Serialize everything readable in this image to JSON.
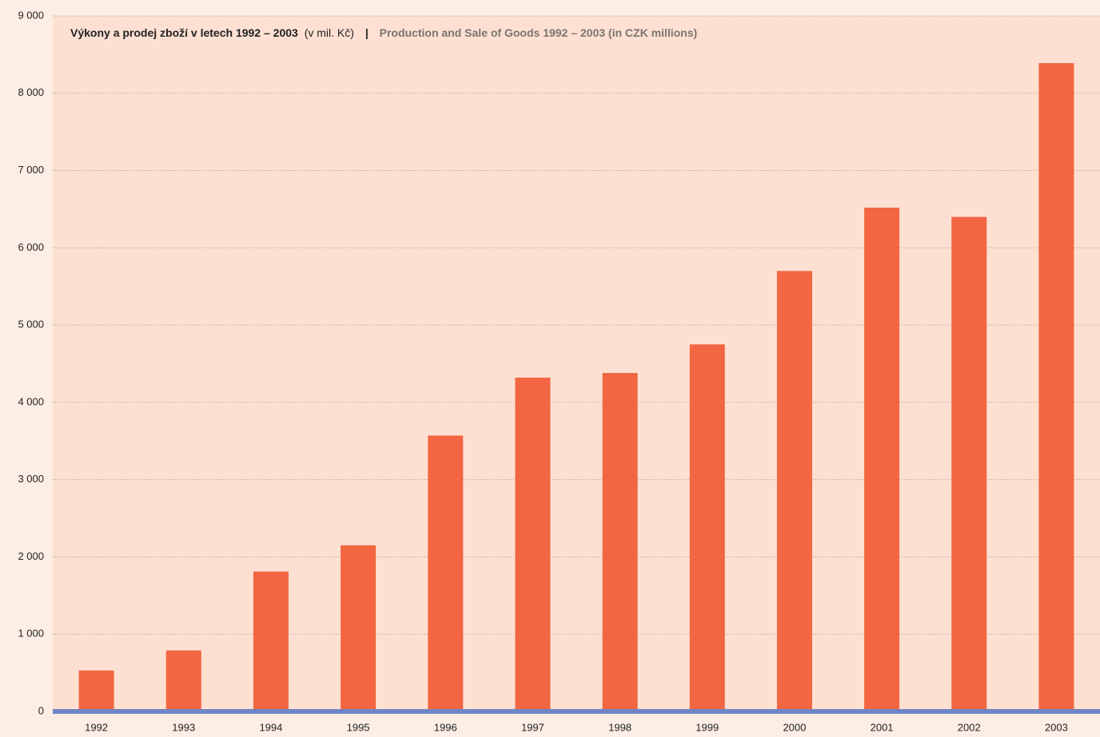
{
  "chart_data": {
    "type": "bar",
    "title": "Výkony a prodej zboží v letech 1992 – 2003",
    "title_unit": "(v mil. Kč)",
    "title_separator": "|",
    "title_en": "Production and Sale of Goods 1992 – 2003 (in CZK millions)",
    "categories": [
      "1992",
      "1993",
      "1994",
      "1995",
      "1996",
      "1997",
      "1998",
      "1999",
      "2000",
      "2001",
      "2002",
      "2003"
    ],
    "values": [
      530,
      790,
      1810,
      2150,
      3570,
      4320,
      4380,
      4750,
      5700,
      6520,
      6400,
      8390
    ],
    "color": "#f26641",
    "ylim": [
      0,
      9000
    ],
    "yticks": [
      0,
      {
        "value": 1000,
        "label": "1 000"
      },
      {
        "value": 2000,
        "label": "2 000"
      },
      {
        "value": 3000,
        "label": "3 000"
      },
      {
        "value": 4000,
        "label": "4 000"
      },
      {
        "value": 5000,
        "label": "5 000"
      },
      {
        "value": 6000,
        "label": "6 000"
      },
      {
        "value": 7000,
        "label": "7 000"
      },
      {
        "value": 8000,
        "label": "8 000"
      },
      {
        "value": 9000,
        "label": "9 000"
      }
    ],
    "grid": true
  }
}
